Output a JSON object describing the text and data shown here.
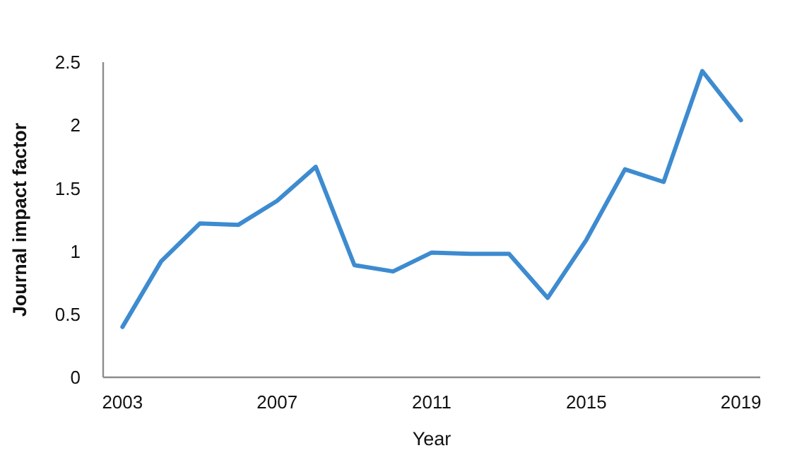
{
  "chart_data": {
    "type": "line",
    "xlabel": "Year",
    "ylabel": "Journal impact factor",
    "x": [
      2003,
      2004,
      2005,
      2006,
      2007,
      2008,
      2009,
      2010,
      2011,
      2012,
      2013,
      2014,
      2015,
      2016,
      2017,
      2018,
      2019
    ],
    "series": [
      {
        "color": "#3d8bd0",
        "values": [
          0.4,
          0.92,
          1.22,
          1.21,
          1.4,
          1.67,
          0.89,
          0.84,
          0.99,
          0.98,
          0.98,
          0.63,
          1.09,
          1.65,
          1.55,
          2.43,
          2.04
        ]
      }
    ],
    "xlim": [
      2002.5,
      2019.5
    ],
    "xticks": [
      2003,
      2007,
      2011,
      2015,
      2019
    ],
    "ylim": [
      0,
      2.5
    ],
    "yticks": [
      0,
      0.5,
      1,
      1.5,
      2,
      2.5
    ],
    "grid": false,
    "marker": "none",
    "line_style": "solid"
  }
}
